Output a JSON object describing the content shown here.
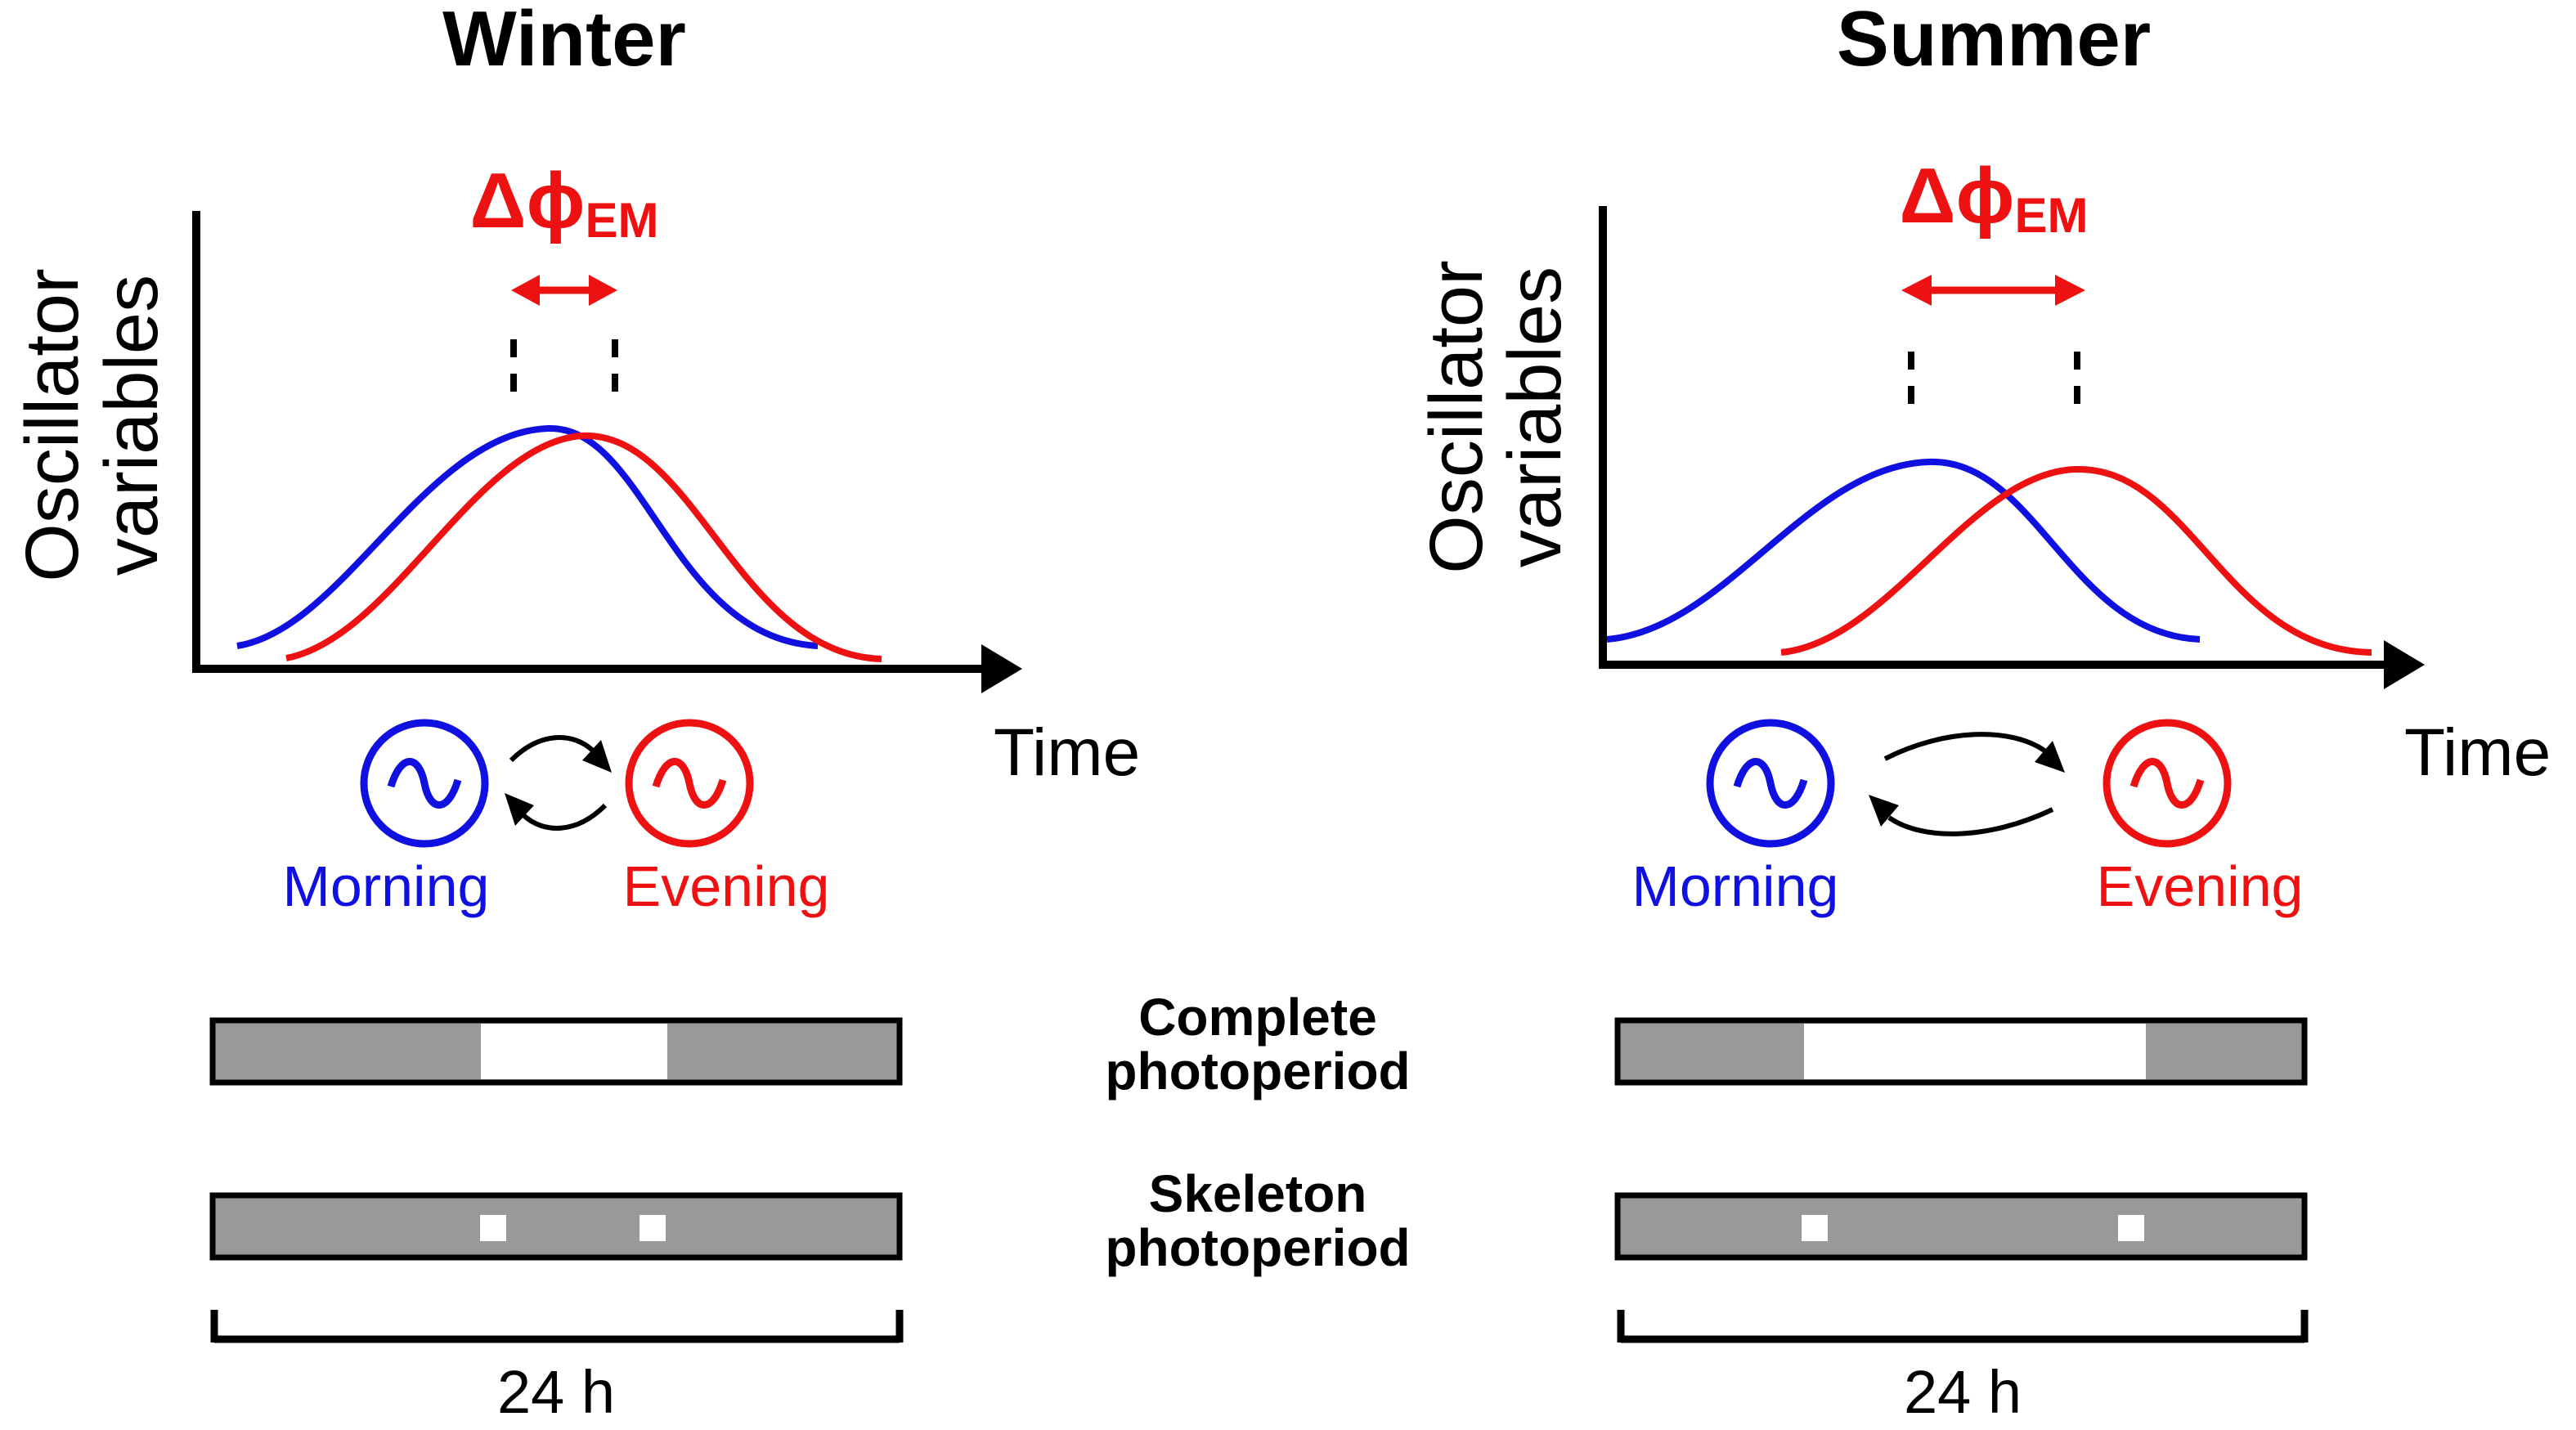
{
  "panels": [
    {
      "id": "winter",
      "title": "Winter",
      "delta_label": "Δϕ",
      "delta_subscript": "EM",
      "y_label_line1": "Oscillator",
      "y_label_line2": "variables",
      "x_label": "Time",
      "morning_label": "Morning",
      "evening_label": "Evening",
      "scale_label": "24 h",
      "light_fraction_complete": [
        0.39,
        0.66
      ],
      "skeleton_pulses": [
        0.41,
        0.64
      ]
    },
    {
      "id": "summer",
      "title": "Summer",
      "delta_label": "Δϕ",
      "delta_subscript": "EM",
      "y_label_line1": "Oscillator",
      "y_label_line2": "variables",
      "x_label": "Time",
      "morning_label": "Morning",
      "evening_label": "Evening",
      "scale_label": "24 h",
      "light_fraction_complete": [
        0.27,
        0.76
      ],
      "skeleton_pulses": [
        0.29,
        0.74
      ]
    }
  ],
  "center_labels": {
    "complete_line1": "Complete",
    "complete_line2": "photoperiod",
    "skeleton_line1": "Skeleton",
    "skeleton_line2": "photoperiod"
  },
  "colors": {
    "morning": "#1010e0",
    "evening": "#ee1111",
    "dark_bar": "#999999",
    "axis": "#000000"
  },
  "icons": [
    "morning-oscillator-icon",
    "evening-oscillator-icon",
    "coupling-arrows-icon"
  ]
}
